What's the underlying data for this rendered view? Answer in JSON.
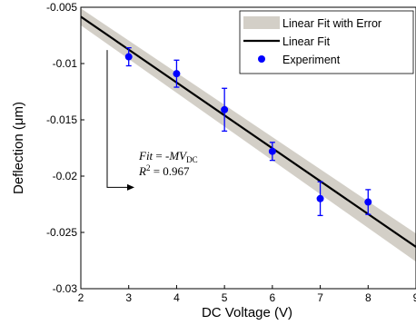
{
  "chart_data": {
    "type": "scatter",
    "title": "",
    "xlabel": "DC Voltage (V)",
    "ylabel": "Deflection (μm)",
    "xlim": [
      2,
      9
    ],
    "ylim": [
      -0.03,
      -0.005
    ],
    "xticks": [
      2,
      3,
      4,
      5,
      6,
      7,
      8,
      9
    ],
    "yticks": [
      -0.005,
      -0.01,
      -0.015,
      -0.02,
      -0.025,
      -0.03
    ],
    "xtick_labels": [
      "2",
      "3",
      "4",
      "5",
      "6",
      "7",
      "8",
      "9"
    ],
    "ytick_labels": [
      "-0.005",
      "-0.01",
      "-0.015",
      "-0.02",
      "-0.025",
      "-0.03"
    ],
    "grid": false,
    "legend_position": "top-right",
    "series": [
      {
        "name": "Experiment",
        "kind": "points-with-error-bars",
        "color": "#0000ff",
        "x": [
          3,
          4,
          5,
          6,
          7,
          8
        ],
        "y": [
          -0.0094,
          -0.0109,
          -0.0141,
          -0.0178,
          -0.022,
          -0.0223
        ],
        "err": [
          0.0008,
          0.0012,
          0.0019,
          0.0008,
          0.0015,
          0.0011
        ]
      },
      {
        "name": "Linear Fit",
        "kind": "line",
        "color": "#000000",
        "x": [
          2,
          9
        ],
        "y": [
          -0.00584,
          -0.02629
        ]
      },
      {
        "name": "Linear Fit with Error",
        "kind": "band",
        "color": "#d3cfc7",
        "x": [
          2,
          9
        ],
        "y_upper": [
          -0.0051,
          -0.0251
        ],
        "y_lower": [
          -0.0066,
          -0.0276
        ]
      }
    ],
    "annotation": {
      "fit_prefix": "Fit",
      "fit_mid": " = -",
      "fit_m": "MV",
      "fit_sub": "DC",
      "r2_prefix": "R",
      "r2_sup": "2",
      "r2_value": " = 0.967",
      "arrow_from": [
        2.55,
        -0.0088
      ],
      "arrow_to": [
        2.55,
        -0.021
      ]
    },
    "legend": [
      {
        "label": "Linear Fit with Error",
        "swatch": "band"
      },
      {
        "label": "Linear Fit",
        "swatch": "line"
      },
      {
        "label": "Experiment",
        "swatch": "marker"
      }
    ]
  }
}
